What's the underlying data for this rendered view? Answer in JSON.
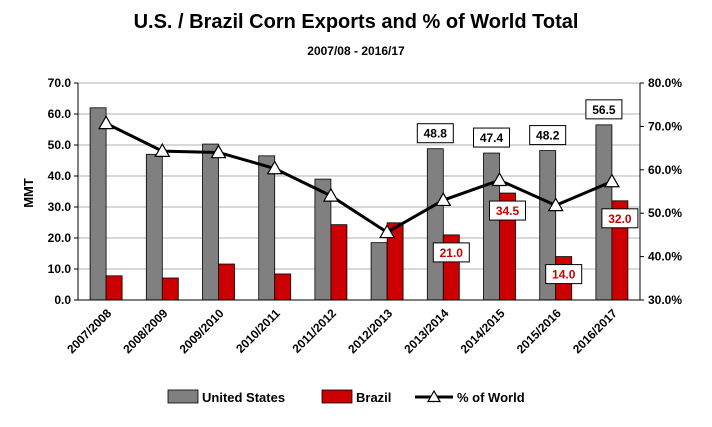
{
  "chart_data": {
    "type": "bar",
    "title": "U.S. / Brazil Corn Exports and % of World Total",
    "subtitle": "2007/08 - 2016/17",
    "ylabel": "MMT",
    "ylim": [
      0,
      70
    ],
    "yticks": [
      "0.0",
      "10.0",
      "20.0",
      "30.0",
      "40.0",
      "50.0",
      "60.0",
      "70.0"
    ],
    "y2lim": [
      30,
      80
    ],
    "y2ticks": [
      "30.0%",
      "40.0%",
      "50.0%",
      "60.0%",
      "70.0%",
      "80.0%"
    ],
    "categories": [
      "2007/2008",
      "2008/2009",
      "2009/2010",
      "2010/2011",
      "2011/2012",
      "2012/2013",
      "2013/2014",
      "2014/2015",
      "2015/2016",
      "2016/2017"
    ],
    "series": [
      {
        "name": "United States",
        "type": "bar",
        "color": "#808080",
        "values": [
          62.0,
          47.0,
          50.3,
          46.5,
          39.0,
          18.5,
          48.8,
          47.4,
          48.2,
          56.5
        ]
      },
      {
        "name": "Brazil",
        "type": "bar",
        "color": "#cc0000",
        "values": [
          7.8,
          7.1,
          11.6,
          8.4,
          24.3,
          24.9,
          21.0,
          34.5,
          14.0,
          32.0
        ]
      },
      {
        "name": "% of World",
        "type": "line",
        "axis": "right",
        "color": "#000000",
        "marker": "triangle-open",
        "values": [
          70.7,
          64.3,
          64.0,
          60.3,
          54.0,
          45.6,
          53.0,
          57.6,
          51.8,
          57.3
        ]
      }
    ],
    "data_labels": [
      {
        "series": 0,
        "index": 6,
        "text": "48.8"
      },
      {
        "series": 0,
        "index": 7,
        "text": "47.4"
      },
      {
        "series": 0,
        "index": 8,
        "text": "48.2"
      },
      {
        "series": 0,
        "index": 9,
        "text": "56.5"
      },
      {
        "series": 1,
        "index": 6,
        "text": "21.0"
      },
      {
        "series": 1,
        "index": 7,
        "text": "34.5"
      },
      {
        "series": 1,
        "index": 8,
        "text": "14.0"
      },
      {
        "series": 1,
        "index": 9,
        "text": "32.0"
      }
    ],
    "grid": true,
    "legend": "bottom"
  }
}
